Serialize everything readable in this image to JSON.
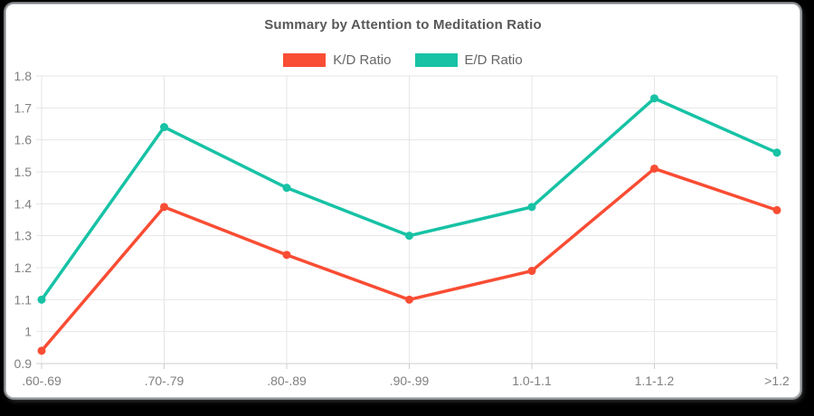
{
  "window": {
    "background_color": "#000000",
    "card_background_color": "#ffffff"
  },
  "chart_data": {
    "type": "line",
    "title": "Summary by Attention to Meditation Ratio",
    "categories": [
      ".60-.69",
      ".70-.79",
      ".80-.89",
      ".90-.99",
      "1.0-1.1",
      "1.1-1.2",
      ">1.2"
    ],
    "series": [
      {
        "name": "K/D Ratio",
        "color": "#F94D34",
        "values": [
          0.94,
          1.39,
          1.24,
          1.1,
          1.19,
          1.51,
          1.38
        ]
      },
      {
        "name": "E/D Ratio",
        "color": "#17C2A5",
        "values": [
          1.1,
          1.64,
          1.45,
          1.3,
          1.39,
          1.73,
          1.56
        ]
      }
    ],
    "xlabel": "",
    "ylabel": "",
    "ylim": [
      0.9,
      1.8
    ],
    "y_ticks": [
      "0.9",
      "1",
      "1.1",
      "1.2",
      "1.3",
      "1.4",
      "1.5",
      "1.6",
      "1.7",
      "1.8"
    ],
    "grid": true,
    "legend_position": "top"
  },
  "styles": {
    "grid_color": "#e6e6e6",
    "axis_line_color": "#cccccc",
    "tick_label_color": "#808080",
    "title_color": "#58585a",
    "legend_text_color": "#666666"
  }
}
